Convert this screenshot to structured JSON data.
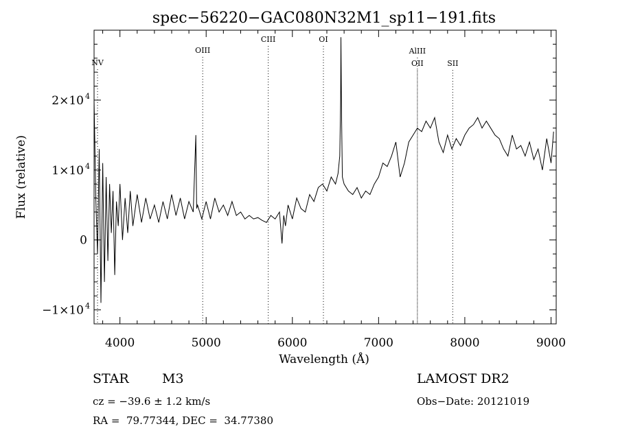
{
  "chart_data": {
    "type": "line",
    "title": "spec−56220−GAC080N32M1_sp11−191.fits",
    "xlabel": "Wavelength (Å)",
    "ylabel": "Flux (relative)",
    "xlim": [
      3700,
      9060
    ],
    "ylim": [
      -12000,
      30000
    ],
    "x_ticks": [
      {
        "v": 4000,
        "label": "4000"
      },
      {
        "v": 5000,
        "label": "5000"
      },
      {
        "v": 6000,
        "label": "6000"
      },
      {
        "v": 7000,
        "label": "7000"
      },
      {
        "v": 8000,
        "label": "8000"
      },
      {
        "v": 9000,
        "label": "9000"
      }
    ],
    "y_ticks": [
      {
        "v": -10000,
        "label": "−1×10",
        "exp": "4"
      },
      {
        "v": 0,
        "label": "0",
        "exp": ""
      },
      {
        "v": 10000,
        "label": "1×10",
        "exp": "4"
      },
      {
        "v": 20000,
        "label": "2×10",
        "exp": "4"
      }
    ],
    "lines": [
      {
        "name": "NV",
        "x": 3740,
        "row": 0
      },
      {
        "name": "OIII",
        "x": 4960,
        "row": 1
      },
      {
        "name": "CIII",
        "x": 5720,
        "row": 2
      },
      {
        "name": "OI",
        "x": 6360,
        "row": 2
      },
      {
        "name": "AlIII",
        "x": 7450,
        "row": 3
      },
      {
        "name": "OII",
        "x": 7450,
        "row": 4
      },
      {
        "name": "SII",
        "x": 7860,
        "row": 4
      }
    ],
    "spectrum": {
      "x": [
        3700,
        3720,
        3740,
        3760,
        3780,
        3800,
        3820,
        3840,
        3860,
        3880,
        3900,
        3920,
        3940,
        3960,
        3980,
        4000,
        4030,
        4060,
        4090,
        4120,
        4150,
        4200,
        4250,
        4300,
        4350,
        4400,
        4450,
        4500,
        4550,
        4600,
        4650,
        4700,
        4750,
        4800,
        4850,
        4880,
        4890,
        4900,
        4950,
        5000,
        5050,
        5100,
        5150,
        5200,
        5250,
        5300,
        5350,
        5400,
        5450,
        5500,
        5550,
        5600,
        5650,
        5700,
        5750,
        5800,
        5850,
        5880,
        5900,
        5920,
        5950,
        6000,
        6050,
        6100,
        6150,
        6200,
        6250,
        6300,
        6350,
        6400,
        6450,
        6500,
        6530,
        6550,
        6560,
        6563,
        6570,
        6580,
        6600,
        6650,
        6700,
        6750,
        6800,
        6850,
        6900,
        6950,
        7000,
        7050,
        7100,
        7150,
        7200,
        7250,
        7300,
        7350,
        7400,
        7450,
        7500,
        7550,
        7600,
        7650,
        7700,
        7750,
        7800,
        7850,
        7900,
        7950,
        8000,
        8050,
        8100,
        8150,
        8200,
        8250,
        8300,
        8350,
        8400,
        8450,
        8500,
        8550,
        8600,
        8650,
        8700,
        8750,
        8800,
        8850,
        8900,
        8950,
        9000,
        9030
      ],
      "y": [
        20000,
        6000,
        -2000,
        13000,
        -9000,
        11000,
        -6000,
        9000,
        -3000,
        8000,
        1000,
        7000,
        -5000,
        5500,
        2000,
        8000,
        0,
        6000,
        1000,
        7000,
        2000,
        6500,
        2500,
        6000,
        3000,
        5000,
        2500,
        5500,
        3000,
        6500,
        3500,
        6000,
        3000,
        5500,
        4000,
        15000,
        4500,
        5000,
        3000,
        5500,
        3000,
        6000,
        4000,
        5000,
        3500,
        5500,
        3500,
        4000,
        3000,
        3500,
        3000,
        3200,
        2800,
        2500,
        3500,
        3000,
        4000,
        -500,
        3500,
        2000,
        5000,
        3000,
        6000,
        4500,
        4000,
        6500,
        5500,
        7500,
        8000,
        7000,
        9000,
        8000,
        9500,
        12000,
        20000,
        29000,
        18000,
        9000,
        8000,
        7000,
        6500,
        7500,
        6000,
        7000,
        6500,
        8000,
        9000,
        11000,
        10500,
        12000,
        14000,
        9000,
        11000,
        14000,
        15000,
        16000,
        15500,
        17000,
        16000,
        17500,
        14000,
        12500,
        15000,
        13000,
        14500,
        13500,
        15000,
        16000,
        16500,
        17500,
        16000,
        17000,
        16000,
        15000,
        14500,
        13000,
        12000,
        15000,
        13000,
        13500,
        12000,
        14000,
        11500,
        13000,
        10000,
        14500,
        11000,
        15500
      ]
    }
  },
  "info": {
    "object_class": "STAR",
    "subclass": "M3",
    "cz": "cz = −39.6 ± 1.2 km/s",
    "radec": "RA =  79.77344, DEC =  34.77380",
    "survey": "LAMOST DR2",
    "obs_date": "Obs−Date: 20121019"
  }
}
